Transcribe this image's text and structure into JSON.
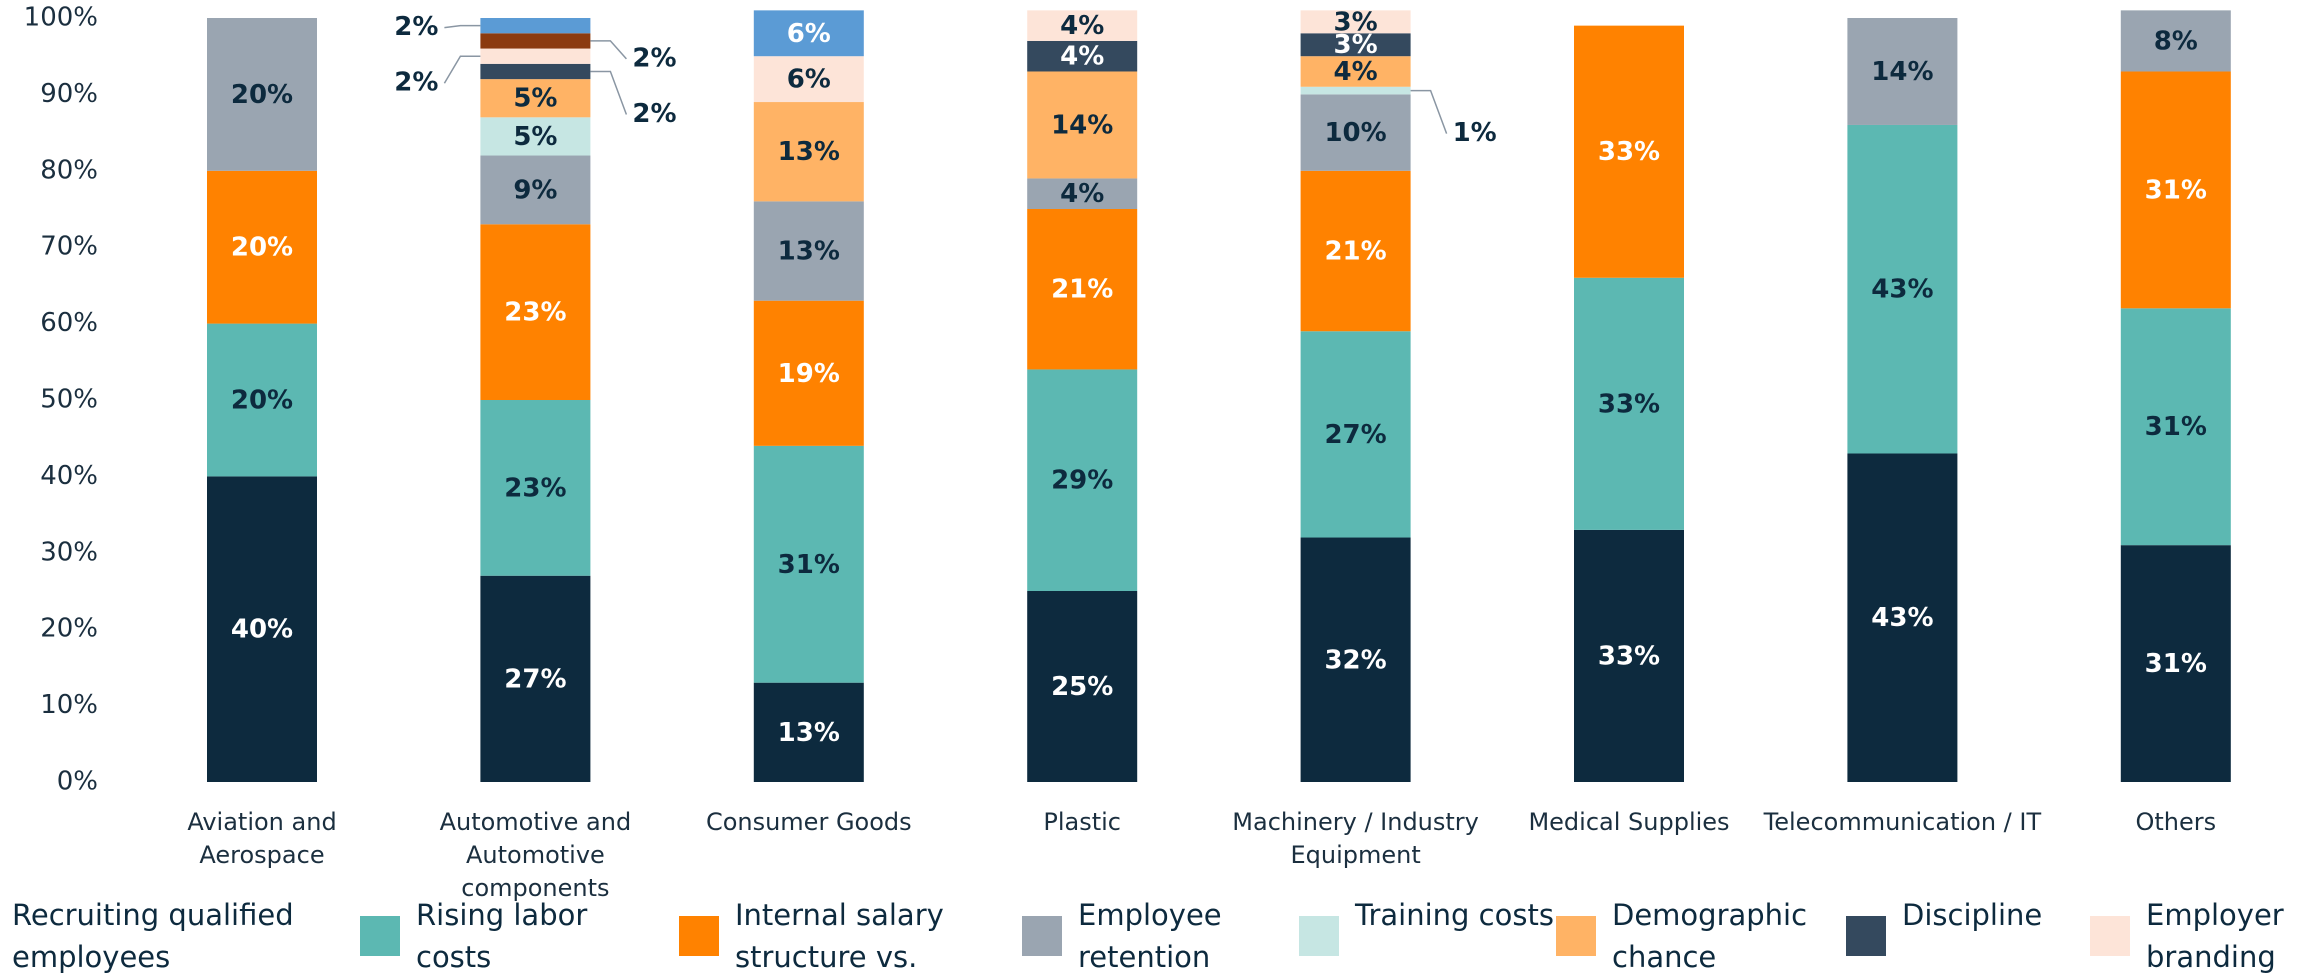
{
  "chart_data": {
    "type": "stacked_bar",
    "categories": [
      "Aviation and Aerospace",
      "Automotive and Automotive components",
      "Consumer Goods",
      "Plastic",
      "Machinery / Industry Equipment",
      "Medical Supplies",
      "Telecommunication / IT",
      "Others"
    ],
    "series": [
      {
        "name": "Recruiting qualified employees",
        "color": "#0d2a3e",
        "values": [
          40,
          27,
          13,
          25,
          32,
          33,
          43,
          31
        ],
        "value_labels": [
          "40%",
          "27%",
          "13%",
          "25%",
          "32%",
          "33%",
          "43%",
          "31%"
        ]
      },
      {
        "name": "Rising labor costs",
        "color": "#5cb8b2",
        "values": [
          20,
          23,
          31,
          29,
          27,
          33,
          43,
          31
        ],
        "value_labels": [
          "20%",
          "23%",
          "31%",
          "29%",
          "27%",
          "33%",
          "43%",
          "31%"
        ]
      },
      {
        "name": "Internal salary structure vs.",
        "color": "#ff8200",
        "values": [
          20,
          23,
          19,
          21,
          21,
          33,
          null,
          31
        ],
        "value_labels": [
          "20%",
          "23%",
          "19%",
          "21%",
          "21%",
          "33%",
          null,
          "31%"
        ]
      },
      {
        "name": "Employee retention",
        "color": "#9aa5b1",
        "values": [
          20,
          9,
          13,
          4,
          10,
          null,
          14,
          8
        ],
        "value_labels": [
          "20%",
          "9%",
          "13%",
          "4%",
          "10%",
          null,
          "14%",
          "8%"
        ]
      },
      {
        "name": "Training costs",
        "color": "#c6e6e3",
        "values": [
          null,
          5,
          null,
          null,
          1,
          null,
          null,
          null
        ],
        "value_labels": [
          null,
          "5%",
          null,
          null,
          "1%",
          null,
          null,
          null
        ]
      },
      {
        "name": "Demographic chance",
        "color": "#ffb365",
        "values": [
          null,
          5,
          13,
          14,
          4,
          null,
          null,
          null
        ],
        "value_labels": [
          null,
          "5%",
          "13%",
          "14%",
          "4%",
          null,
          null,
          null
        ]
      },
      {
        "name": "Discipline",
        "color": "#34495e",
        "values": [
          null,
          2,
          null,
          4,
          3,
          null,
          null,
          null
        ],
        "value_labels": [
          null,
          "2%",
          null,
          "4%",
          "3%",
          null,
          null,
          null
        ]
      },
      {
        "name": "Employer branding",
        "color": "#fde4d8",
        "values": [
          null,
          2,
          6,
          4,
          3,
          null,
          null,
          null
        ],
        "value_labels": [
          null,
          "2%",
          "6%",
          "4%",
          "3%",
          null,
          null,
          null
        ]
      },
      {
        "color": "#8b3a10",
        "values": [
          null,
          2,
          null,
          null,
          null,
          null,
          null,
          null
        ],
        "value_labels": [
          null,
          "2%",
          null,
          null,
          null,
          null,
          null,
          null
        ]
      },
      {
        "color": "#5b9bd5",
        "values": [
          null,
          2,
          6,
          null,
          null,
          null,
          null,
          null
        ],
        "value_labels": [
          null,
          "2%",
          "6%",
          null,
          null,
          null,
          null,
          null
        ]
      }
    ],
    "ylim": [
      0,
      100
    ],
    "yticks": [
      {
        "value": 0,
        "label": "0%"
      },
      {
        "value": 10,
        "label": "10%"
      },
      {
        "value": 20,
        "label": "20%"
      },
      {
        "value": 30,
        "label": "30%"
      },
      {
        "value": 40,
        "label": "40%"
      },
      {
        "value": 50,
        "label": "50%"
      },
      {
        "value": 60,
        "label": "60%"
      },
      {
        "value": 70,
        "label": "70%"
      },
      {
        "value": 80,
        "label": "80%"
      },
      {
        "value": 90,
        "label": "90%"
      },
      {
        "value": 100,
        "label": "100%"
      }
    ],
    "grid": false
  }
}
